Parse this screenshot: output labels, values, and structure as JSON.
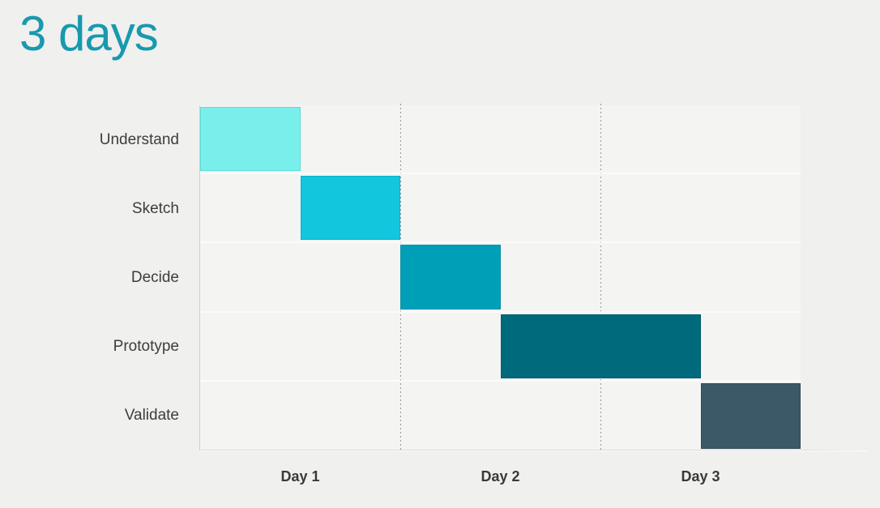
{
  "title": {
    "text": "3 days",
    "color": "#1899ae"
  },
  "chart_data": {
    "type": "bar",
    "variant": "gantt-timeline",
    "title": "3 days",
    "categories": [
      "Understand",
      "Sketch",
      "Decide",
      "Prototype",
      "Validate"
    ],
    "x": {
      "unit": "day",
      "range": [
        0,
        3
      ],
      "tick_labels": [
        "Day 1",
        "Day 2",
        "Day 3"
      ]
    },
    "bars": [
      {
        "label": "Understand",
        "start": 0,
        "end": 0.5,
        "duration_days": 0.5,
        "color": "#79efec",
        "border": "#5cdcd8"
      },
      {
        "label": "Sketch",
        "start": 0.5,
        "end": 1,
        "duration_days": 0.5,
        "color": "#12c6de",
        "border": "#0db1c8"
      },
      {
        "label": "Decide",
        "start": 1,
        "end": 1.5,
        "duration_days": 0.5,
        "color": "#009fb8",
        "border": "#038fa6"
      },
      {
        "label": "Prototype",
        "start": 1.5,
        "end": 2.5,
        "duration_days": 1.0,
        "color": "#006a7d",
        "border": "#00596b"
      },
      {
        "label": "Validate",
        "start": 2.5,
        "end": 3,
        "duration_days": 0.5,
        "color": "#3b5966",
        "border": "#2d4955"
      }
    ],
    "gridlines": {
      "vertical_day_separators_at_day": [
        1,
        2
      ],
      "style": "dotted"
    },
    "legend": "none"
  },
  "style": {
    "page_background": "#f0f0ef",
    "plot_background": "#f4f4f3",
    "axis_line_color": "#cfcfcf",
    "baseline_color": "#d9d9d9",
    "grid_dot_color": "#969696",
    "row_label_color": "#3d3d3d",
    "day_label_color": "#3a3a3a"
  }
}
